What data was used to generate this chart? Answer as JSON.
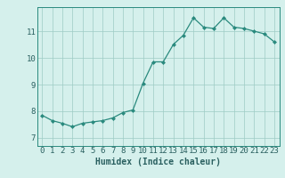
{
  "x": [
    0,
    1,
    2,
    3,
    4,
    5,
    6,
    7,
    8,
    9,
    10,
    11,
    12,
    13,
    14,
    15,
    16,
    17,
    18,
    19,
    20,
    21,
    22,
    23
  ],
  "y": [
    7.85,
    7.65,
    7.55,
    7.42,
    7.55,
    7.6,
    7.65,
    7.75,
    7.95,
    8.05,
    9.05,
    9.85,
    9.85,
    10.5,
    10.85,
    11.5,
    11.15,
    11.1,
    11.5,
    11.15,
    11.1,
    11.0,
    10.9,
    10.6
  ],
  "line_color": "#2a8a7e",
  "marker": "D",
  "markersize": 2.0,
  "linewidth": 0.9,
  "xlabel": "Humidex (Indice chaleur)",
  "xlabel_fontsize": 7,
  "ylabel_ticks": [
    7,
    8,
    9,
    10,
    11
  ],
  "xlim": [
    -0.5,
    23.5
  ],
  "ylim": [
    6.7,
    11.9
  ],
  "background_color": "#d5f0ec",
  "grid_color": "#9eccc5",
  "tick_label_fontsize": 6.5,
  "tick_color": "#2a6060"
}
